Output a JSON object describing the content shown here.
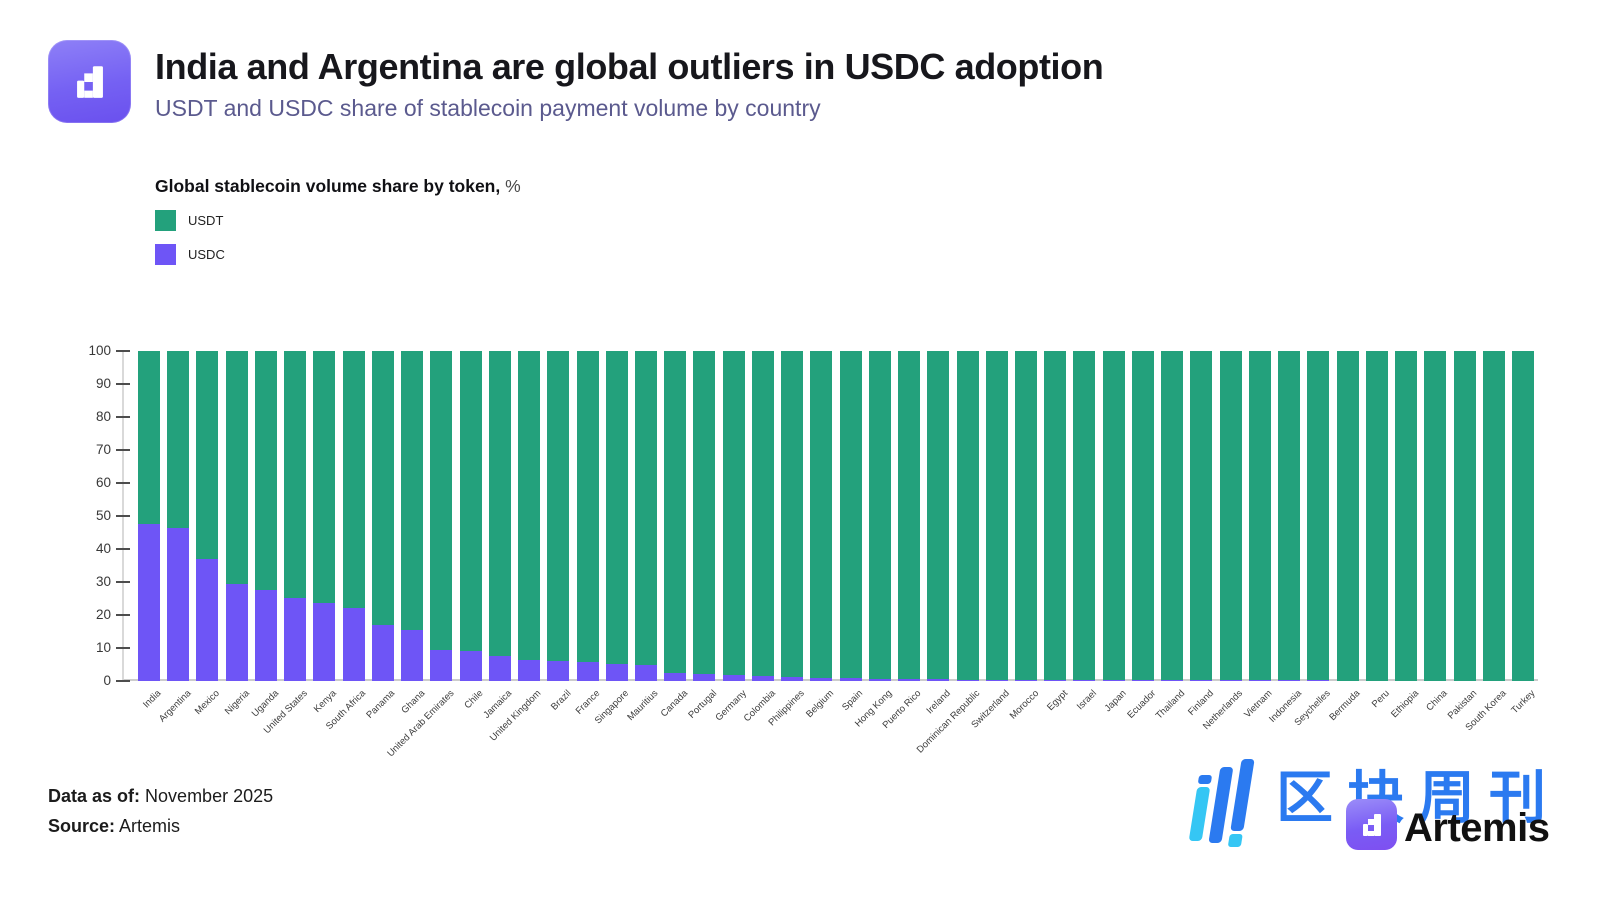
{
  "header": {
    "title": "India and Argentina are global outliers in USDC adoption",
    "subtitle": "USDT and USDC share of stablecoin payment volume by country",
    "logo": "artemis-app-icon"
  },
  "legend": {
    "title": "Global stablecoin volume share by token,",
    "unit": "%",
    "items": [
      {
        "label": "USDT",
        "color": "#23a17c"
      },
      {
        "label": "USDC",
        "color": "#6e55f6"
      }
    ]
  },
  "chart_data": {
    "type": "bar",
    "stacked": true,
    "title": "Global stablecoin volume share by token, %",
    "xlabel": "",
    "ylabel": "",
    "ylim": [
      0,
      100
    ],
    "yticks": [
      0,
      10,
      20,
      30,
      40,
      50,
      60,
      70,
      80,
      90,
      100
    ],
    "grid": false,
    "legend_position": "top-left",
    "categories": [
      "India",
      "Argentina",
      "Mexico",
      "Nigeria",
      "Uganda",
      "United States",
      "Kenya",
      "South Africa",
      "Panama",
      "Ghana",
      "United Arab Emirates",
      "Chile",
      "Jamaica",
      "United Kingdom",
      "Brazil",
      "France",
      "Singapore",
      "Mauritius",
      "Canada",
      "Portugal",
      "Germany",
      "Colombia",
      "Philippines",
      "Belgium",
      "Spain",
      "Hong Kong",
      "Puerto Rico",
      "Ireland",
      "Dominican Republic",
      "Switzerland",
      "Morocco",
      "Egypt",
      "Israel",
      "Japan",
      "Ecuador",
      "Thailand",
      "Finland",
      "Netherlands",
      "Vietnam",
      "Indonesia",
      "Seychelles",
      "Bermuda",
      "Peru",
      "Ethiopia",
      "China",
      "Pakistan",
      "South Korea",
      "Turkey"
    ],
    "series": [
      {
        "name": "USDC",
        "color": "#6e55f6",
        "values": [
          47.5,
          46.5,
          37,
          29.5,
          27.5,
          25,
          23.5,
          22,
          17,
          15.5,
          9.5,
          9,
          7.5,
          6.5,
          6,
          5.8,
          5,
          4.7,
          2.5,
          2.2,
          1.7,
          1.4,
          1.1,
          1,
          0.9,
          0.7,
          0.6,
          0.5,
          0.45,
          0.4,
          0.4,
          0.35,
          0.3,
          0.3,
          0.25,
          0.25,
          0.2,
          0.2,
          0.15,
          0.1,
          0.1,
          0,
          0,
          0,
          0,
          0,
          0,
          0
        ]
      },
      {
        "name": "USDT",
        "color": "#23a17c",
        "values": [
          52.5,
          53.5,
          63,
          70.5,
          72.5,
          75,
          76.5,
          78,
          83,
          84.5,
          90.5,
          91,
          92.5,
          93.5,
          94,
          94.2,
          95,
          95.3,
          97.5,
          97.8,
          98.3,
          98.6,
          98.9,
          99,
          99.1,
          99.3,
          99.4,
          99.5,
          99.55,
          99.6,
          99.6,
          99.65,
          99.7,
          99.7,
          99.75,
          99.75,
          99.8,
          99.8,
          99.85,
          99.9,
          99.9,
          100,
          100,
          100,
          100,
          100,
          100,
          100
        ]
      }
    ]
  },
  "footer": {
    "data_as_of_label": "Data as of:",
    "data_as_of_value": "November 2025",
    "source_label": "Source:",
    "source_value": "Artemis"
  },
  "watermark": {
    "cn_text": "区块周刊",
    "artemis_label": "Artemis"
  },
  "colors": {
    "usdt_green": "#23a17c",
    "usdc_purple": "#6e55f6",
    "subtitle_violet": "#5b5a8e",
    "watermark_blue": "#2b7af0",
    "watermark_cyan": "#35c6f4"
  }
}
